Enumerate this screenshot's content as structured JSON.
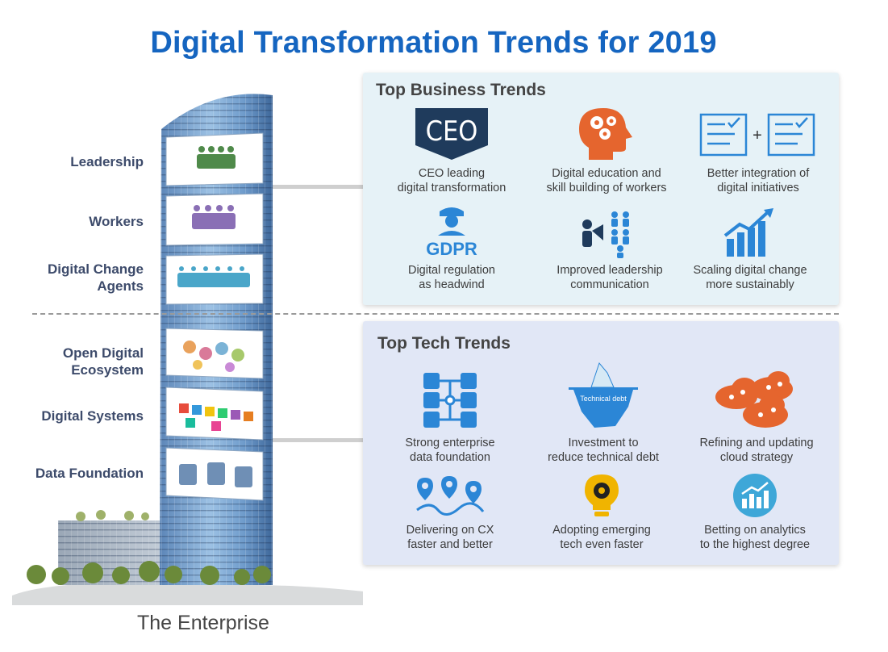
{
  "title": "Digital Transformation Trends for 2019",
  "tower_levels": [
    {
      "label": "Leadership"
    },
    {
      "label": "Workers"
    },
    {
      "label": "Digital Change\nAgents"
    },
    {
      "label": "Open Digital\nEcosystem"
    },
    {
      "label": "Digital Systems"
    },
    {
      "label": "Data Foundation"
    }
  ],
  "tower_caption": "The Enterprise",
  "business_panel": {
    "title": "Top Business Trends",
    "ceo_badge": "CEO",
    "gdpr_badge": "GDPR",
    "items": [
      {
        "text": "CEO leading\ndigital transformation",
        "icon": "ceo-badge-icon"
      },
      {
        "text": "Digital education and\nskill building of workers",
        "icon": "head-gears-icon"
      },
      {
        "text": "Better integration of\ndigital initiatives",
        "icon": "integration-checklist-icon"
      },
      {
        "text": "Digital regulation\nas headwind",
        "icon": "gdpr-officer-icon"
      },
      {
        "text": "Improved leadership\ncommunication",
        "icon": "megaphone-team-icon"
      },
      {
        "text": "Scaling digital change\nmore sustainably",
        "icon": "growth-chart-icon"
      }
    ]
  },
  "tech_panel": {
    "title": "Top Tech Trends",
    "debt_label": "Technical debt",
    "items": [
      {
        "text": "Strong enterprise\ndata foundation",
        "icon": "database-network-icon"
      },
      {
        "text": "Investment to\nreduce technical debt",
        "icon": "iceberg-icon"
      },
      {
        "text": "Refining and updating\ncloud strategy",
        "icon": "cloud-network-icon"
      },
      {
        "text": "Delivering on CX\nfaster and better",
        "icon": "map-pins-route-icon"
      },
      {
        "text": "Adopting emerging\ntech even faster",
        "icon": "lightbulb-gear-icon"
      },
      {
        "text": "Betting on analytics\nto the highest degree",
        "icon": "analytics-circle-icon"
      }
    ]
  },
  "colors": {
    "title": "#1565c0",
    "icon_blue": "#2b86d6",
    "icon_navy": "#1f3b5c",
    "icon_orange": "#e5652e",
    "business_bg": "#e6f2f7",
    "tech_bg": "#e1e7f6"
  }
}
